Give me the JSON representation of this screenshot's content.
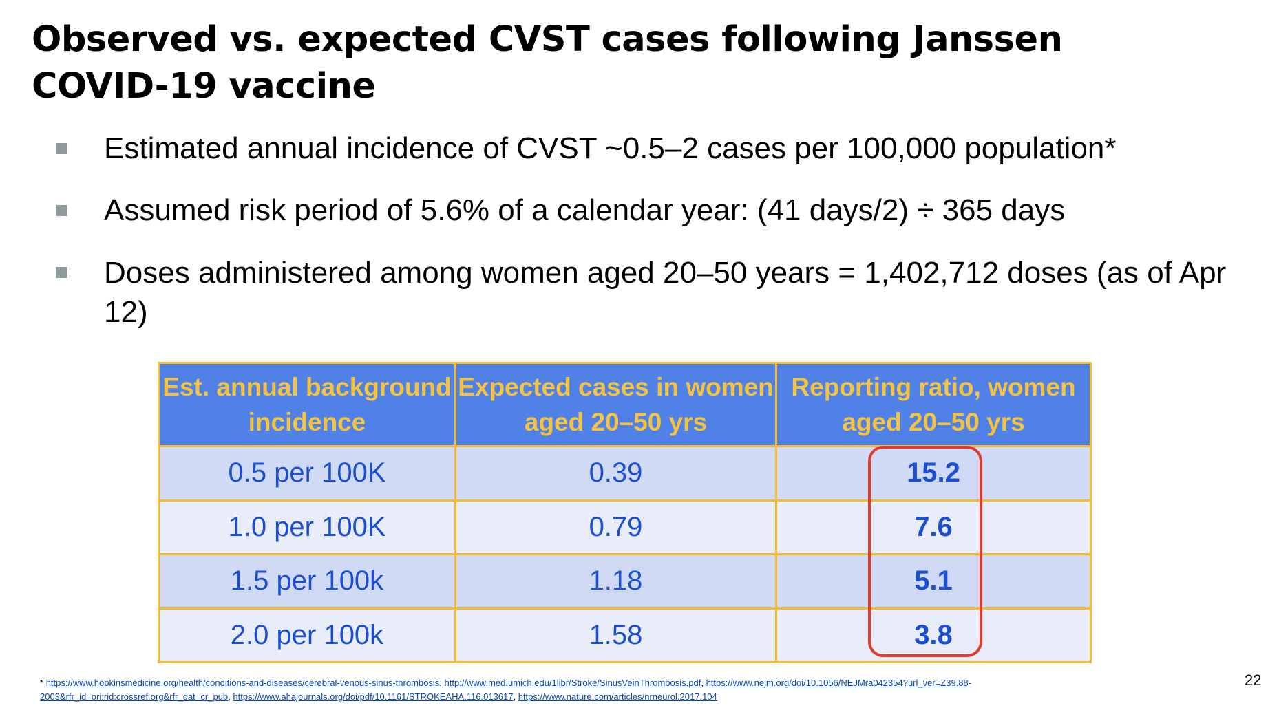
{
  "title": "Observed vs. expected CVST cases following Janssen COVID-19 vaccine",
  "bullets": [
    "Estimated annual incidence of CVST ~0.5–2 cases per 100,000 population*",
    "Assumed risk period of 5.6% of a calendar year: (41 days/2) ÷ 365 days",
    "Doses administered among women aged 20–50 years = 1,402,712 doses (as of Apr 12)"
  ],
  "table": {
    "headers": [
      "Est. annual background incidence",
      "Expected cases in women aged 20–50 yrs",
      "Reporting ratio, women aged 20–50 yrs"
    ],
    "rows": [
      {
        "incidence": "0.5 per 100K",
        "expected": "0.39",
        "ratio": "15.2"
      },
      {
        "incidence": "1.0 per 100K",
        "expected": "0.79",
        "ratio": "7.6"
      },
      {
        "incidence": "1.5 per 100k",
        "expected": "1.18",
        "ratio": "5.1"
      },
      {
        "incidence": "2.0 per 100k",
        "expected": "1.58",
        "ratio": "3.8"
      }
    ],
    "header_bg": "#4f81e6",
    "header_text_color": "#f4c342",
    "border_color": "#f2bb32",
    "highlight_color": "#e33a2c"
  },
  "footnote": {
    "marker": "*",
    "links": [
      "https://www.hopkinsmedicine.org/health/conditions-and-diseases/cerebral-venous-sinus-thrombosis",
      "http://www.med.umich.edu/1libr/Stroke/SinusVeinThrombosis.pdf",
      "https://www.nejm.org/doi/10.1056/NEJMra042354?url_ver=Z39.88-2003&rfr_id=ori:rid:crossref.org&rfr_dat=cr_pub",
      "https://www.ahajournals.org/doi/pdf/10.1161/STROKEAHA.116.013617",
      "https://www.nature.com/articles/nrneurol.2017.104"
    ]
  },
  "page_number": "22"
}
